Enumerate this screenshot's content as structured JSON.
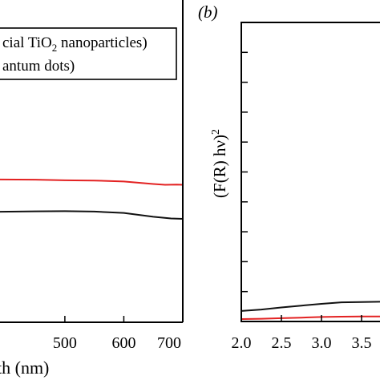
{
  "chart_data": [
    {
      "panel": "a",
      "type": "line",
      "xlabel_visible": "th (nm)",
      "ylabel": "",
      "xlim": [
        390,
        700
      ],
      "x_ticks": [
        500,
        600,
        700
      ],
      "ylim": [
        0,
        10
      ],
      "y_ticks": [],
      "grid": false,
      "legend_position": "top",
      "legend_entries": [
        {
          "prefix": "cial TiO",
          "sub": "2",
          "suffix": " nanoparticles)",
          "color": "#000000"
        },
        {
          "prefix": "antum dots)",
          "sub": "",
          "suffix": "",
          "color": "#000000"
        }
      ],
      "series": [
        {
          "color": "#e32222",
          "x": [
            390,
            450,
            500,
            550,
            600,
            650,
            670,
            690,
            700
          ],
          "y": [
            7.04,
            7.03,
            7.0,
            6.99,
            6.94,
            6.82,
            6.78,
            6.79,
            6.78
          ]
        },
        {
          "color": "#111111",
          "x": [
            390,
            450,
            500,
            550,
            600,
            650,
            680,
            700
          ],
          "y": [
            5.45,
            5.47,
            5.48,
            5.46,
            5.39,
            5.2,
            5.12,
            5.1
          ]
        }
      ]
    },
    {
      "panel": "b",
      "panel_label": "(b)",
      "type": "line",
      "ylabel_main": "(F(R) hν)",
      "ylabel_sup": "2",
      "xlim": [
        2.0,
        3.73
      ],
      "x_ticks": [
        "2.0",
        "2.5",
        "3.0",
        "3.5"
      ],
      "ylim": [
        0,
        10
      ],
      "y_minor_ticks": [
        1,
        2,
        3,
        4,
        5,
        6,
        7,
        8,
        9
      ],
      "grid": false,
      "series": [
        {
          "color": "#111111",
          "x": [
            2.0,
            2.25,
            2.5,
            2.75,
            3.0,
            3.25,
            3.5,
            3.73
          ],
          "y": [
            0.35,
            0.4,
            0.47,
            0.53,
            0.59,
            0.64,
            0.65,
            0.66
          ]
        },
        {
          "color": "#e32222",
          "x": [
            2.0,
            2.25,
            2.5,
            2.75,
            3.0,
            3.25,
            3.5,
            3.73
          ],
          "y": [
            0.08,
            0.09,
            0.11,
            0.13,
            0.15,
            0.16,
            0.17,
            0.17
          ]
        }
      ]
    }
  ]
}
